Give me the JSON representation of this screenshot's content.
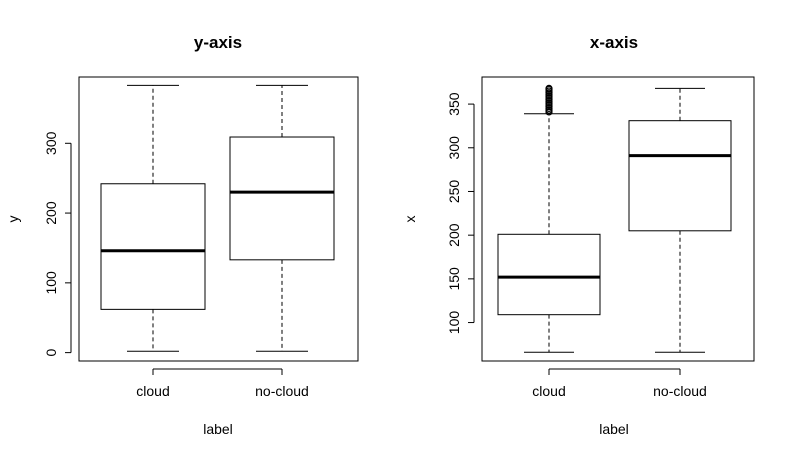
{
  "chart_data": [
    {
      "type": "box",
      "title": "y-axis",
      "xlabel": "label",
      "ylabel": "y",
      "categories": [
        "cloud",
        "no-cloud"
      ],
      "ylim": [
        -12,
        395
      ],
      "yticks": [
        0,
        100,
        200,
        300
      ],
      "boxes": [
        {
          "category": "cloud",
          "min": 2,
          "q1": 62,
          "median": 146,
          "q3": 242,
          "max": 383,
          "outliers": []
        },
        {
          "category": "no-cloud",
          "min": 2,
          "q1": 133,
          "median": 230,
          "q3": 309,
          "max": 383,
          "outliers": []
        }
      ]
    },
    {
      "type": "box",
      "title": "x-axis",
      "xlabel": "label",
      "ylabel": "x",
      "categories": [
        "cloud",
        "no-cloud"
      ],
      "ylim": [
        56,
        381
      ],
      "yticks": [
        100,
        150,
        200,
        250,
        300,
        350
      ],
      "boxes": [
        {
          "category": "cloud",
          "min": 66,
          "q1": 109,
          "median": 152,
          "q3": 201,
          "max": 339,
          "outliers": [
            341,
            343,
            345,
            347,
            349,
            351,
            353,
            355,
            357,
            359,
            361,
            363,
            365,
            367,
            368
          ]
        },
        {
          "category": "no-cloud",
          "min": 66,
          "q1": 205,
          "median": 291,
          "q3": 331,
          "max": 368,
          "outliers": []
        }
      ]
    }
  ]
}
